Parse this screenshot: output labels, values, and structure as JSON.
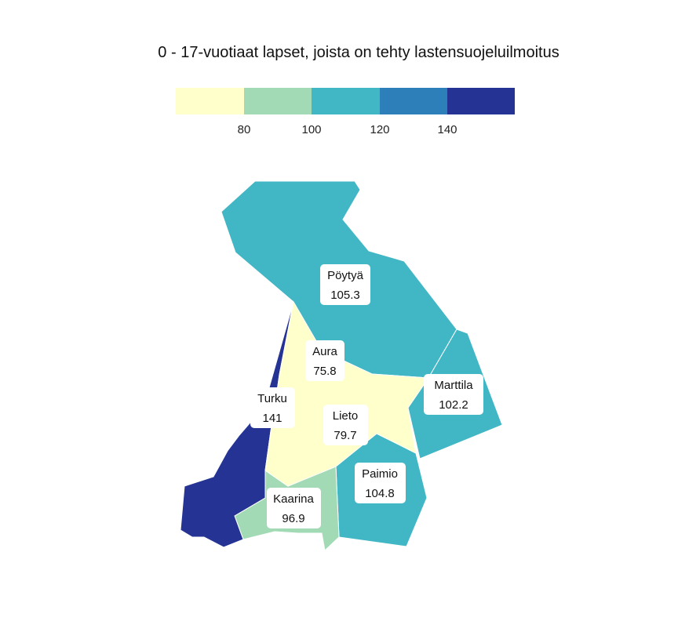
{
  "title": "0 - 17-vuotiaat lapset, joista on tehty lastensuojeluilmoitus",
  "legend": {
    "breaks": [
      80,
      100,
      120,
      140
    ],
    "tick_labels": [
      "80",
      "100",
      "120",
      "140"
    ],
    "colors": [
      "#ffffcc",
      "#a1dab4",
      "#41b6c4",
      "#2c7fb8",
      "#253494"
    ]
  },
  "regions": [
    {
      "id": "poytya",
      "name": "Pöytyä",
      "value": "105.3",
      "color": "#41b6c4"
    },
    {
      "id": "aura",
      "name": "Aura",
      "value": "75.8",
      "color": "#ffffcc"
    },
    {
      "id": "turku",
      "name": "Turku",
      "value": "141",
      "color": "#253494"
    },
    {
      "id": "marttila",
      "name": "Marttila",
      "value": "102.2",
      "color": "#41b6c4"
    },
    {
      "id": "lieto",
      "name": "Lieto",
      "value": "79.7",
      "color": "#ffffcc"
    },
    {
      "id": "paimio",
      "name": "Paimio",
      "value": "104.8",
      "color": "#41b6c4"
    },
    {
      "id": "kaarina",
      "name": "Kaarina",
      "value": "96.9",
      "color": "#a1dab4"
    }
  ]
}
